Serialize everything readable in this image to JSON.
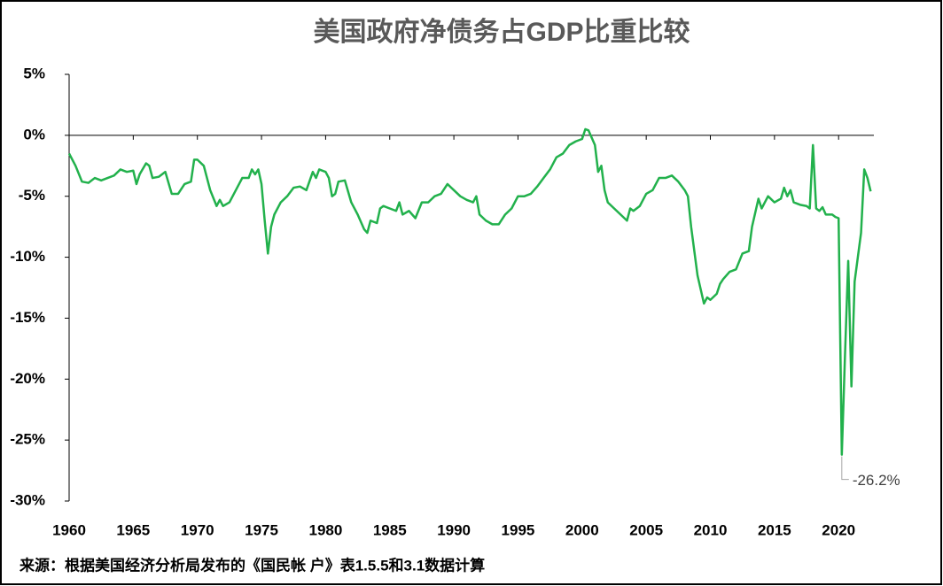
{
  "chart_data": {
    "type": "line",
    "title": "美国政府净债务占GDP比重比较",
    "source": "来源：根据美国经济分析局发布的《国民帐 户》表1.5.5和3.1数据计算",
    "color": "#22b14c",
    "xlim": [
      1960,
      2022.75
    ],
    "xticks": [
      1960,
      1965,
      1970,
      1975,
      1980,
      1985,
      1990,
      1995,
      2000,
      2005,
      2010,
      2015,
      2020
    ],
    "ylim": [
      -30,
      5
    ],
    "yticks": [
      {
        "value": 5,
        "label": "5%"
      },
      {
        "value": 0,
        "label": "0%"
      },
      {
        "value": -5,
        "label": "-5%"
      },
      {
        "value": -10,
        "label": "-10%"
      },
      {
        "value": -15,
        "label": "-15%"
      },
      {
        "value": -20,
        "label": "-20%"
      },
      {
        "value": -25,
        "label": "-25%"
      },
      {
        "value": -30,
        "label": "-30%"
      }
    ],
    "grid": false,
    "x": [
      1960.0,
      1960.5,
      1961.0,
      1961.5,
      1962.0,
      1962.5,
      1963.0,
      1963.5,
      1964.0,
      1964.5,
      1965.0,
      1965.25,
      1965.5,
      1966.0,
      1966.25,
      1966.5,
      1967.0,
      1967.5,
      1968.0,
      1968.5,
      1969.0,
      1969.5,
      1969.75,
      1970.0,
      1970.5,
      1971.0,
      1971.5,
      1971.75,
      1972.0,
      1972.5,
      1973.0,
      1973.5,
      1974.0,
      1974.25,
      1974.5,
      1974.75,
      1975.0,
      1975.25,
      1975.5,
      1975.75,
      1976.0,
      1976.5,
      1977.0,
      1977.5,
      1978.0,
      1978.5,
      1979.0,
      1979.25,
      1979.5,
      1980.0,
      1980.25,
      1980.5,
      1980.75,
      1981.0,
      1981.5,
      1982.0,
      1982.5,
      1983.0,
      1983.25,
      1983.5,
      1984.0,
      1984.25,
      1984.5,
      1985.0,
      1985.5,
      1985.75,
      1986.0,
      1986.5,
      1987.0,
      1987.5,
      1988.0,
      1988.5,
      1989.0,
      1989.5,
      1990.0,
      1990.5,
      1991.0,
      1991.5,
      1991.75,
      1992.0,
      1992.5,
      1993.0,
      1993.5,
      1994.0,
      1994.5,
      1995.0,
      1995.5,
      1996.0,
      1996.5,
      1997.0,
      1997.5,
      1998.0,
      1998.5,
      1999.0,
      1999.5,
      2000.0,
      2000.25,
      2000.5,
      2000.75,
      2001.0,
      2001.25,
      2001.5,
      2001.75,
      2002.0,
      2002.5,
      2003.0,
      2003.5,
      2003.75,
      2004.0,
      2004.5,
      2005.0,
      2005.5,
      2006.0,
      2006.5,
      2007.0,
      2007.5,
      2008.0,
      2008.25,
      2008.5,
      2009.0,
      2009.5,
      2009.75,
      2010.0,
      2010.5,
      2010.75,
      2011.0,
      2011.5,
      2012.0,
      2012.5,
      2013.0,
      2013.25,
      2013.75,
      2014.0,
      2014.25,
      2014.5,
      2015.0,
      2015.5,
      2015.75,
      2016.0,
      2016.25,
      2016.5,
      2017.0,
      2017.5,
      2017.75,
      2018.0,
      2018.25,
      2018.5,
      2018.75,
      2019.0,
      2019.5,
      2019.75,
      2020.0,
      2020.25,
      2020.5,
      2020.75,
      2021.0,
      2021.25,
      2021.5,
      2021.75,
      2022.0,
      2022.25,
      2022.5
    ],
    "values": [
      -1.5,
      -2.5,
      -3.8,
      -3.9,
      -3.5,
      -3.7,
      -3.5,
      -3.3,
      -2.8,
      -3.0,
      -2.9,
      -4.0,
      -3.2,
      -2.3,
      -2.5,
      -3.5,
      -3.4,
      -3.0,
      -4.8,
      -4.8,
      -4.0,
      -3.8,
      -2.0,
      -2.0,
      -2.5,
      -4.5,
      -5.8,
      -5.3,
      -5.8,
      -5.5,
      -4.5,
      -3.5,
      -3.5,
      -2.8,
      -3.2,
      -2.8,
      -4.0,
      -7.0,
      -9.7,
      -7.5,
      -6.5,
      -5.5,
      -5.0,
      -4.3,
      -4.2,
      -4.5,
      -3.0,
      -3.5,
      -2.8,
      -3.0,
      -3.5,
      -5.0,
      -4.8,
      -3.8,
      -3.7,
      -5.5,
      -6.5,
      -7.7,
      -8.0,
      -7.0,
      -7.2,
      -6.0,
      -5.8,
      -6.0,
      -6.2,
      -5.5,
      -6.5,
      -6.2,
      -6.8,
      -5.5,
      -5.5,
      -5.0,
      -4.8,
      -4.0,
      -4.5,
      -5.0,
      -5.3,
      -5.5,
      -5.0,
      -6.5,
      -7.0,
      -7.3,
      -7.3,
      -6.5,
      -6.0,
      -5.0,
      -5.0,
      -4.8,
      -4.2,
      -3.5,
      -2.8,
      -1.8,
      -1.5,
      -0.8,
      -0.5,
      -0.3,
      0.5,
      0.4,
      -0.2,
      -0.8,
      -3.0,
      -2.5,
      -4.5,
      -5.5,
      -6.0,
      -6.5,
      -7.0,
      -6.0,
      -6.2,
      -5.8,
      -4.8,
      -4.5,
      -3.5,
      -3.5,
      -3.3,
      -3.8,
      -4.5,
      -5.0,
      -7.5,
      -11.5,
      -13.8,
      -13.3,
      -13.5,
      -13.0,
      -12.2,
      -11.8,
      -11.2,
      -11.0,
      -9.7,
      -9.5,
      -7.5,
      -5.2,
      -6.0,
      -5.5,
      -5.0,
      -5.5,
      -5.2,
      -4.3,
      -5.0,
      -4.5,
      -5.5,
      -5.7,
      -5.8,
      -6.0,
      -0.8,
      -6.0,
      -6.2,
      -5.9,
      -6.5,
      -6.5,
      -6.7,
      -6.8,
      -26.2,
      -18.0,
      -10.3,
      -20.6,
      -12.0,
      -10.0,
      -8.0,
      -2.8,
      -3.5,
      -4.6
    ],
    "annotation": {
      "x": 2020.25,
      "value": -26.2,
      "label": "-26.2%"
    }
  }
}
